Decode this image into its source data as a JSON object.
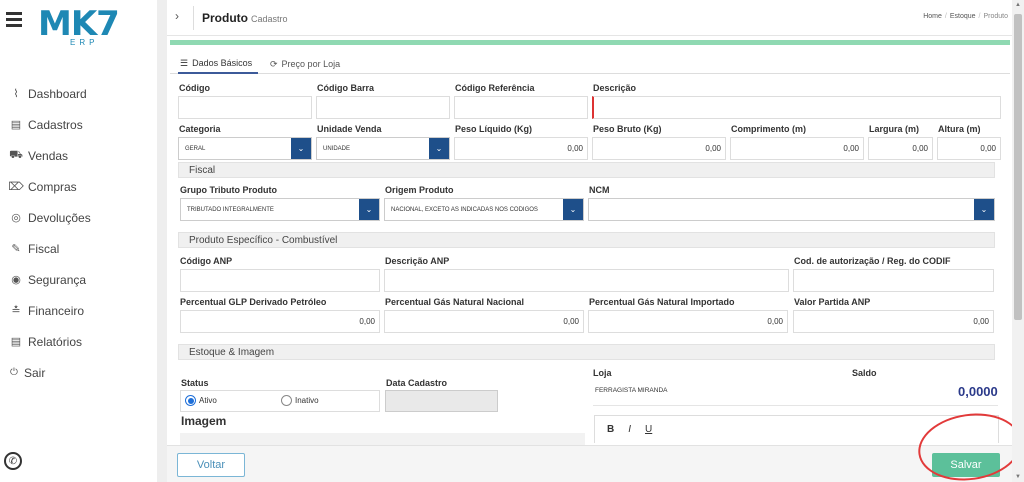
{
  "brand": {
    "logo": "MK7",
    "sub": "ERP"
  },
  "menu": [
    {
      "label": "Dashboard",
      "icon": "chart-icon"
    },
    {
      "label": "Cadastros",
      "icon": "document-icon"
    },
    {
      "label": "Vendas",
      "icon": "cart-icon"
    },
    {
      "label": "Compras",
      "icon": "tag-icon"
    },
    {
      "label": "Devoluções",
      "icon": "return-icon"
    },
    {
      "label": "Fiscal",
      "icon": "pen-icon"
    },
    {
      "label": "Segurança",
      "icon": "lock-icon"
    },
    {
      "label": "Financeiro",
      "icon": "money-icon"
    },
    {
      "label": "Relatórios",
      "icon": "report-icon"
    },
    {
      "label": "Sair",
      "icon": "power-icon"
    }
  ],
  "header": {
    "title": "Produto",
    "subtitle": "Cadastro",
    "breadcrumb": [
      "Home",
      "Estoque",
      "Produto"
    ]
  },
  "tabs": [
    {
      "label": "Dados Básicos",
      "icon": "database-icon"
    },
    {
      "label": "Preço por Loja",
      "icon": "refresh-icon"
    }
  ],
  "basic": {
    "codigo": "Código",
    "codigo_barra": "Código Barra",
    "codigo_ref": "Código Referência",
    "descricao": "Descrição",
    "categoria": "Categoria",
    "categoria_val": "GERAL",
    "unidade": "Unidade Venda",
    "unidade_val": "UNIDADE",
    "peso_liq": "Peso Líquido (Kg)",
    "peso_liq_val": "0,00",
    "peso_bruto": "Peso Bruto (Kg)",
    "peso_bruto_val": "0,00",
    "comprimento": "Comprimento (m)",
    "comprimento_val": "0,00",
    "largura": "Largura (m)",
    "largura_val": "0,00",
    "altura": "Altura (m)",
    "altura_val": "0,00"
  },
  "fiscal": {
    "section": "Fiscal",
    "grupo": "Grupo Tributo Produto",
    "grupo_val": "TRIBUTADO INTEGRALMENTE",
    "origem": "Origem Produto",
    "origem_val": "NACIONAL, EXCETO AS INDICADAS NOS CODIGOS",
    "ncm": "NCM"
  },
  "comb": {
    "section": "Produto Específico - Combustível",
    "anp": "Código ANP",
    "desc_anp": "Descrição ANP",
    "codif": "Cod. de autorização / Reg. do CODIF",
    "glp": "Percentual GLP Derivado Petróleo",
    "glp_val": "0,00",
    "gn_nac": "Percentual Gás Natural Nacional",
    "gn_nac_val": "0,00",
    "gn_imp": "Percentual Gás Natural Importado",
    "gn_imp_val": "0,00",
    "partida": "Valor Partida ANP",
    "partida_val": "0,00"
  },
  "estoque": {
    "section": "Estoque & Imagem",
    "status": "Status",
    "ativo": "Ativo",
    "inativo": "Inativo",
    "data": "Data Cadastro",
    "imagem": "Imagem",
    "loja": "Loja",
    "saldo": "Saldo",
    "loja_val": "FERRAGISTA MIRANDA",
    "saldo_val": "0,0000",
    "editor": [
      "B",
      "I",
      "U"
    ]
  },
  "footer": {
    "voltar": "Voltar",
    "salvar": "Salvar"
  },
  "colors": {
    "accent": "#1e4f8a",
    "green": "#5cc09a",
    "annotation": "#e23a3a"
  }
}
